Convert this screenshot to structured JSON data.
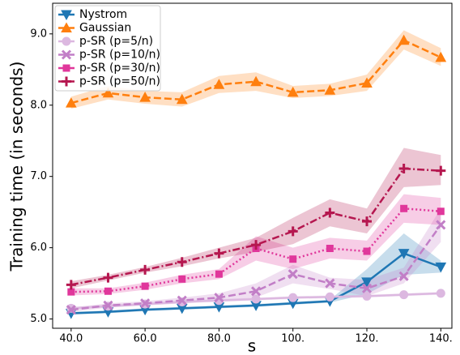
{
  "chart_data": {
    "type": "line",
    "xlabel": "s",
    "ylabel": "Training time (in seconds)",
    "x": [
      40,
      50,
      60,
      70,
      80,
      90,
      100,
      110,
      120,
      130,
      140
    ],
    "xlim": [
      35,
      143
    ],
    "ylim": [
      4.87,
      9.43
    ],
    "xticks": [
      {
        "value": 40,
        "label": "40.0"
      },
      {
        "value": 60,
        "label": "60.0"
      },
      {
        "value": 80,
        "label": "80.0"
      },
      {
        "value": 100,
        "label": "100."
      },
      {
        "value": 120,
        "label": "120."
      },
      {
        "value": 140,
        "label": "140."
      }
    ],
    "yticks": [
      {
        "value": 5,
        "label": "5.0"
      },
      {
        "value": 6,
        "label": "6.0"
      },
      {
        "value": 7,
        "label": "7.0"
      },
      {
        "value": 8,
        "label": "8.0"
      },
      {
        "value": 9,
        "label": "9.0"
      }
    ],
    "legend": "upper left",
    "series": [
      {
        "name": "Nystrom",
        "color": "#1f77b4",
        "marker": "tri-down",
        "linestyle": "solid",
        "values": [
          5.08,
          5.1,
          5.13,
          5.15,
          5.17,
          5.19,
          5.22,
          5.25,
          5.52,
          5.92,
          5.73
        ],
        "lower": [
          5.06,
          5.08,
          5.11,
          5.13,
          5.15,
          5.17,
          5.2,
          5.23,
          5.35,
          5.62,
          5.65
        ],
        "upper": [
          5.1,
          5.12,
          5.15,
          5.17,
          5.19,
          5.21,
          5.24,
          5.27,
          5.7,
          6.2,
          5.82
        ]
      },
      {
        "name": "Gaussian",
        "color": "#ff7f0e",
        "marker": "tri-up",
        "linestyle": "dashed",
        "values": [
          8.03,
          8.17,
          8.11,
          8.08,
          8.29,
          8.33,
          8.18,
          8.21,
          8.31,
          8.91,
          8.67
        ],
        "lower": [
          7.95,
          8.08,
          8.02,
          7.98,
          8.17,
          8.2,
          8.1,
          8.13,
          8.2,
          8.78,
          8.55
        ],
        "upper": [
          8.12,
          8.27,
          8.2,
          8.18,
          8.41,
          8.46,
          8.27,
          8.3,
          8.43,
          9.05,
          8.8
        ]
      },
      {
        "name": "p-SR (p=5/n)",
        "color": "#dcb8e0",
        "marker": "circle",
        "linestyle": "solid",
        "values": [
          5.15,
          5.18,
          5.21,
          5.24,
          5.26,
          5.28,
          5.3,
          5.31,
          5.32,
          5.34,
          5.36
        ],
        "lower": [
          5.13,
          5.16,
          5.19,
          5.22,
          5.24,
          5.26,
          5.28,
          5.29,
          5.3,
          5.32,
          5.34
        ],
        "upper": [
          5.17,
          5.2,
          5.23,
          5.26,
          5.28,
          5.3,
          5.32,
          5.33,
          5.34,
          5.36,
          5.38
        ]
      },
      {
        "name": "p-SR (p=10/n)",
        "color": "#c27fc7",
        "marker": "x",
        "linestyle": "dashed",
        "values": [
          5.13,
          5.19,
          5.22,
          5.26,
          5.3,
          5.39,
          5.63,
          5.5,
          5.43,
          5.6,
          6.32
        ],
        "lower": [
          5.1,
          5.16,
          5.19,
          5.22,
          5.25,
          5.3,
          5.5,
          5.42,
          5.32,
          5.5,
          6.08
        ],
        "upper": [
          5.16,
          5.22,
          5.25,
          5.3,
          5.36,
          5.5,
          5.76,
          5.58,
          5.55,
          5.72,
          6.55
        ]
      },
      {
        "name": "p-SR (p=30/n)",
        "color": "#e0379b",
        "marker": "square",
        "linestyle": "dotted",
        "values": [
          5.38,
          5.39,
          5.46,
          5.56,
          5.63,
          5.99,
          5.84,
          5.99,
          5.95,
          6.55,
          6.51
        ],
        "lower": [
          5.33,
          5.35,
          5.41,
          5.5,
          5.56,
          5.82,
          5.7,
          5.85,
          5.82,
          6.35,
          6.32
        ],
        "upper": [
          5.43,
          5.43,
          5.51,
          5.62,
          5.7,
          6.16,
          6.0,
          6.14,
          6.1,
          6.75,
          6.7
        ]
      },
      {
        "name": "p-SR (p=50/n)",
        "color": "#b5174f",
        "marker": "plus",
        "linestyle": "dashdot",
        "values": [
          5.48,
          5.58,
          5.69,
          5.8,
          5.92,
          6.04,
          6.23,
          6.49,
          6.37,
          7.11,
          7.08
        ],
        "lower": [
          5.43,
          5.54,
          5.65,
          5.74,
          5.85,
          5.94,
          6.05,
          6.3,
          6.2,
          6.85,
          6.88
        ],
        "upper": [
          5.53,
          5.62,
          5.73,
          5.86,
          6.0,
          6.14,
          6.42,
          6.68,
          6.55,
          7.4,
          7.3
        ]
      }
    ]
  }
}
